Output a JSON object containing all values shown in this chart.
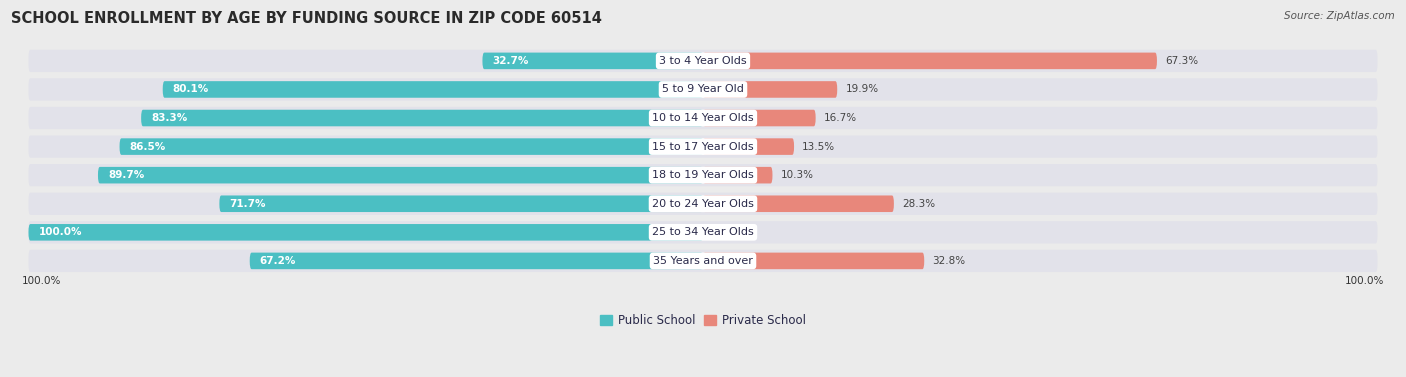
{
  "title": "SCHOOL ENROLLMENT BY AGE BY FUNDING SOURCE IN ZIP CODE 60514",
  "source": "Source: ZipAtlas.com",
  "categories": [
    "3 to 4 Year Olds",
    "5 to 9 Year Old",
    "10 to 14 Year Olds",
    "15 to 17 Year Olds",
    "18 to 19 Year Olds",
    "20 to 24 Year Olds",
    "25 to 34 Year Olds",
    "35 Years and over"
  ],
  "public_values": [
    32.7,
    80.1,
    83.3,
    86.5,
    89.7,
    71.7,
    100.0,
    67.2
  ],
  "private_values": [
    67.3,
    19.9,
    16.7,
    13.5,
    10.3,
    28.3,
    0.0,
    32.8
  ],
  "public_color": "#4bbfc3",
  "private_color": "#e8877b",
  "public_label": "Public School",
  "private_label": "Private School",
  "bg_color": "#ebebeb",
  "row_bg_color": "#e2e2ea",
  "title_fontsize": 10.5,
  "label_fontsize": 8.0,
  "value_fontsize": 7.5,
  "legend_fontsize": 8.5,
  "source_fontsize": 7.5,
  "axis_label_100": "100.0%",
  "max_val": 100
}
